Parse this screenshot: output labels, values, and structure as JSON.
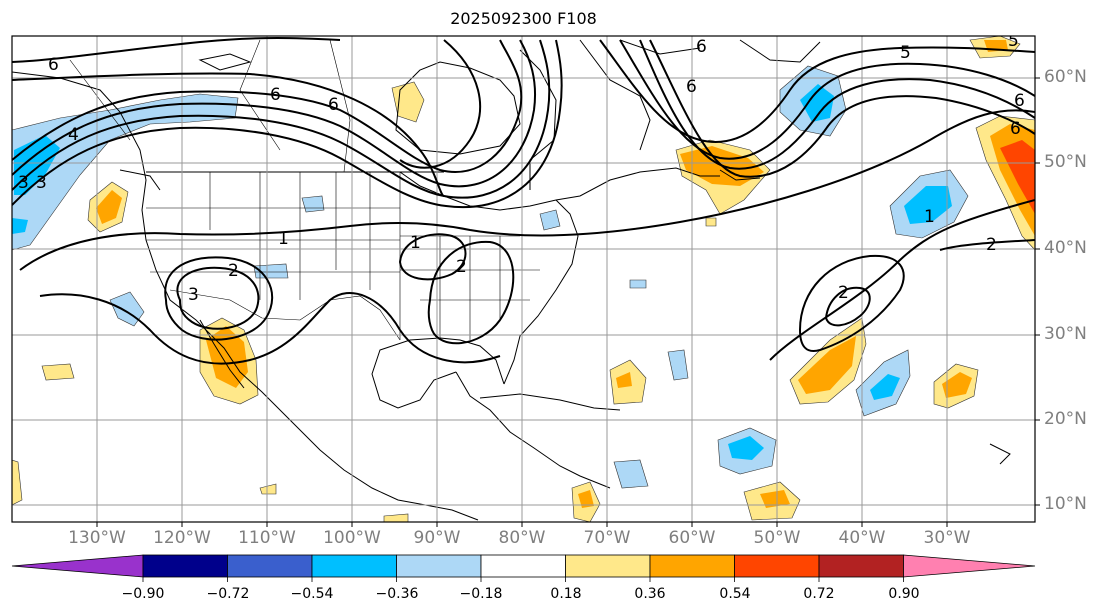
{
  "title": "2025092300 F108",
  "lon_labels": [
    "130°W",
    "120°W",
    "110°W",
    "100°W",
    "90°W",
    "80°W",
    "70°W",
    "60°W",
    "50°W",
    "40°W",
    "30°W"
  ],
  "lat_labels": [
    "60°N",
    "50°N",
    "40°N",
    "30°N",
    "20°N",
    "10°N"
  ],
  "colorbar": {
    "ticks": [
      "−0.90",
      "−0.72",
      "−0.54",
      "−0.36",
      "−0.18",
      "0.18",
      "0.36",
      "0.54",
      "0.72",
      "0.90"
    ],
    "colors": [
      "#9932cc",
      "#00008b",
      "#3a5fcd",
      "#00bfff",
      "#add8f6",
      "#ffffff",
      "#ffe88a",
      "#ffa500",
      "#ff4500",
      "#b22222",
      "#ff80b0"
    ]
  },
  "contour_labels": [
    "6",
    "6",
    "6",
    "5",
    "4",
    "3",
    "6",
    "6",
    "5",
    "6",
    "6",
    "1",
    "2",
    "3",
    "1",
    "2",
    "1",
    "2",
    "2",
    "3"
  ]
}
